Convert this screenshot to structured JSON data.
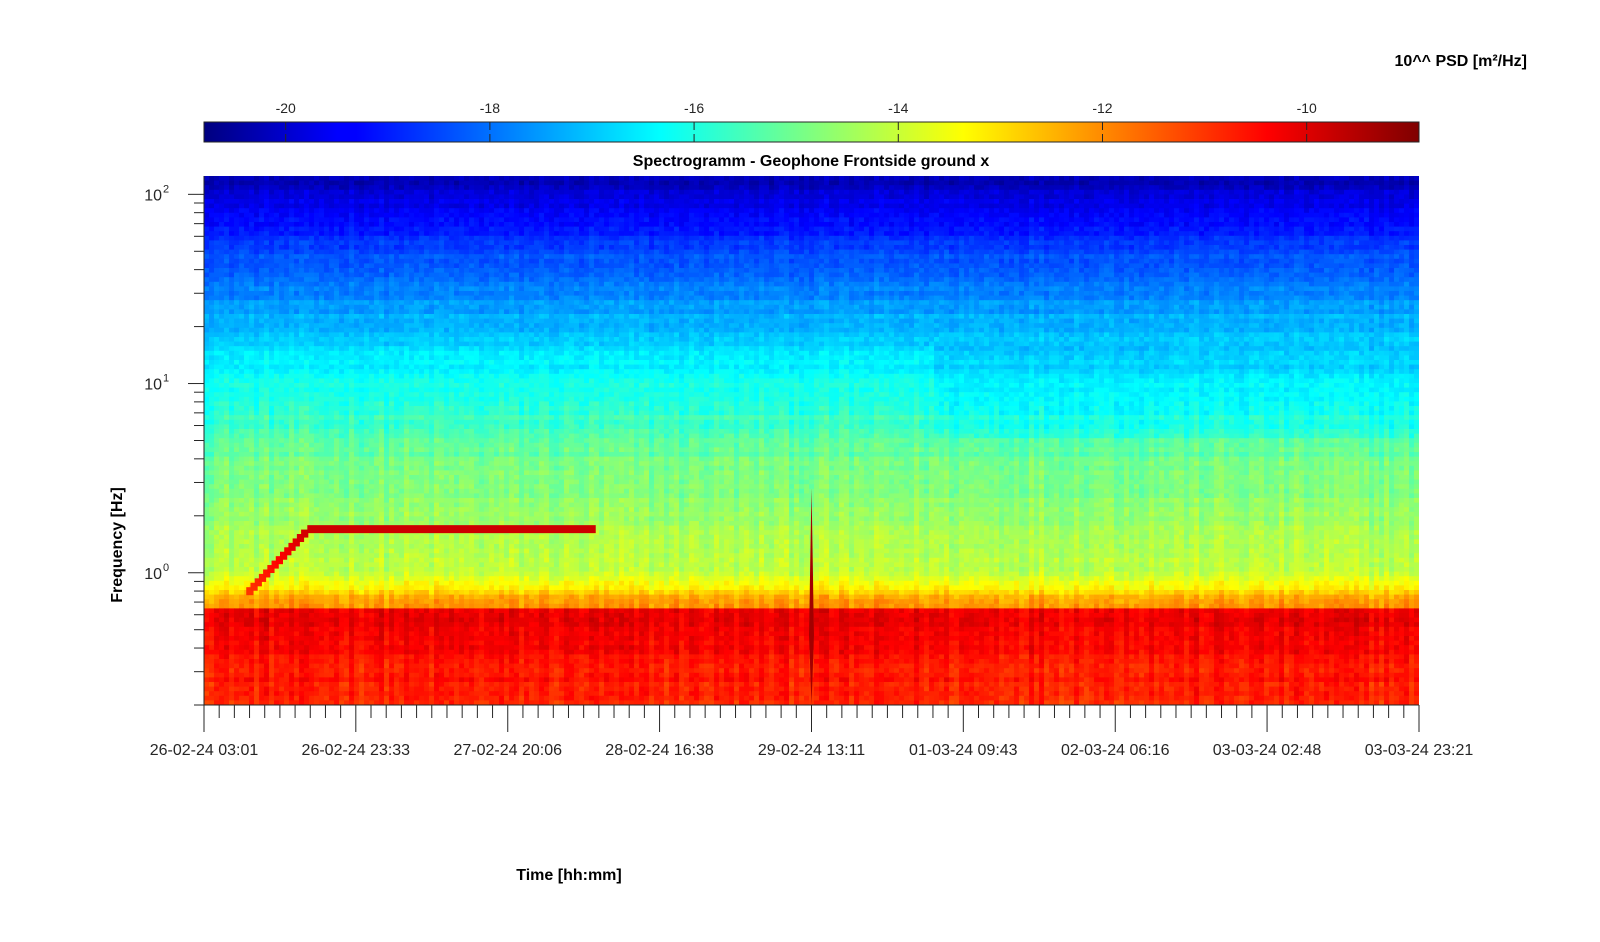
{
  "chart_data": {
    "type": "heatmap",
    "title": "Spectrogramm - Geophone Frontside ground x",
    "xlabel": "Time [hh:mm]",
    "ylabel": "Frequency [Hz]",
    "colorbar": {
      "label": "10^^ PSD [m²/Hz]",
      "range": [
        -20.8,
        -8.9
      ],
      "ticks": [
        -20,
        -18,
        -16,
        -14,
        -12,
        -10
      ],
      "tick_labels": [
        "-20",
        "-18",
        "-16",
        "-14",
        "-12",
        "-10"
      ],
      "colormap": "jet",
      "placement": "top"
    },
    "x_axis": {
      "range": [
        "26-02-24 03:01",
        "03-03-24 23:21"
      ],
      "ticks": [
        "26-02-24 03:01",
        "26-02-24 23:33",
        "27-02-24 20:06",
        "28-02-24 16:38",
        "29-02-24 13:11",
        "01-03-24 09:43",
        "02-03-24 06:16",
        "03-03-24 02:48",
        "03-03-24 23:21"
      ]
    },
    "y_axis": {
      "scale": "log",
      "range": [
        0.2,
        125
      ],
      "ticks": [
        1,
        10,
        100
      ],
      "tick_labels": [
        "10",
        "10",
        "10"
      ],
      "tick_exponents": [
        "0",
        "1",
        "2"
      ]
    },
    "features": [
      {
        "kind": "tonal-line",
        "start": "26-02-24 09:00",
        "end": "28-02-24 08:00",
        "freq_hz": 1.7,
        "log_psd": -9.8
      },
      {
        "kind": "broadband-event",
        "time": "29-02-24 13:11",
        "freq_range_hz": [
          0.2,
          2.8
        ],
        "log_psd": -9.3
      }
    ]
  }
}
